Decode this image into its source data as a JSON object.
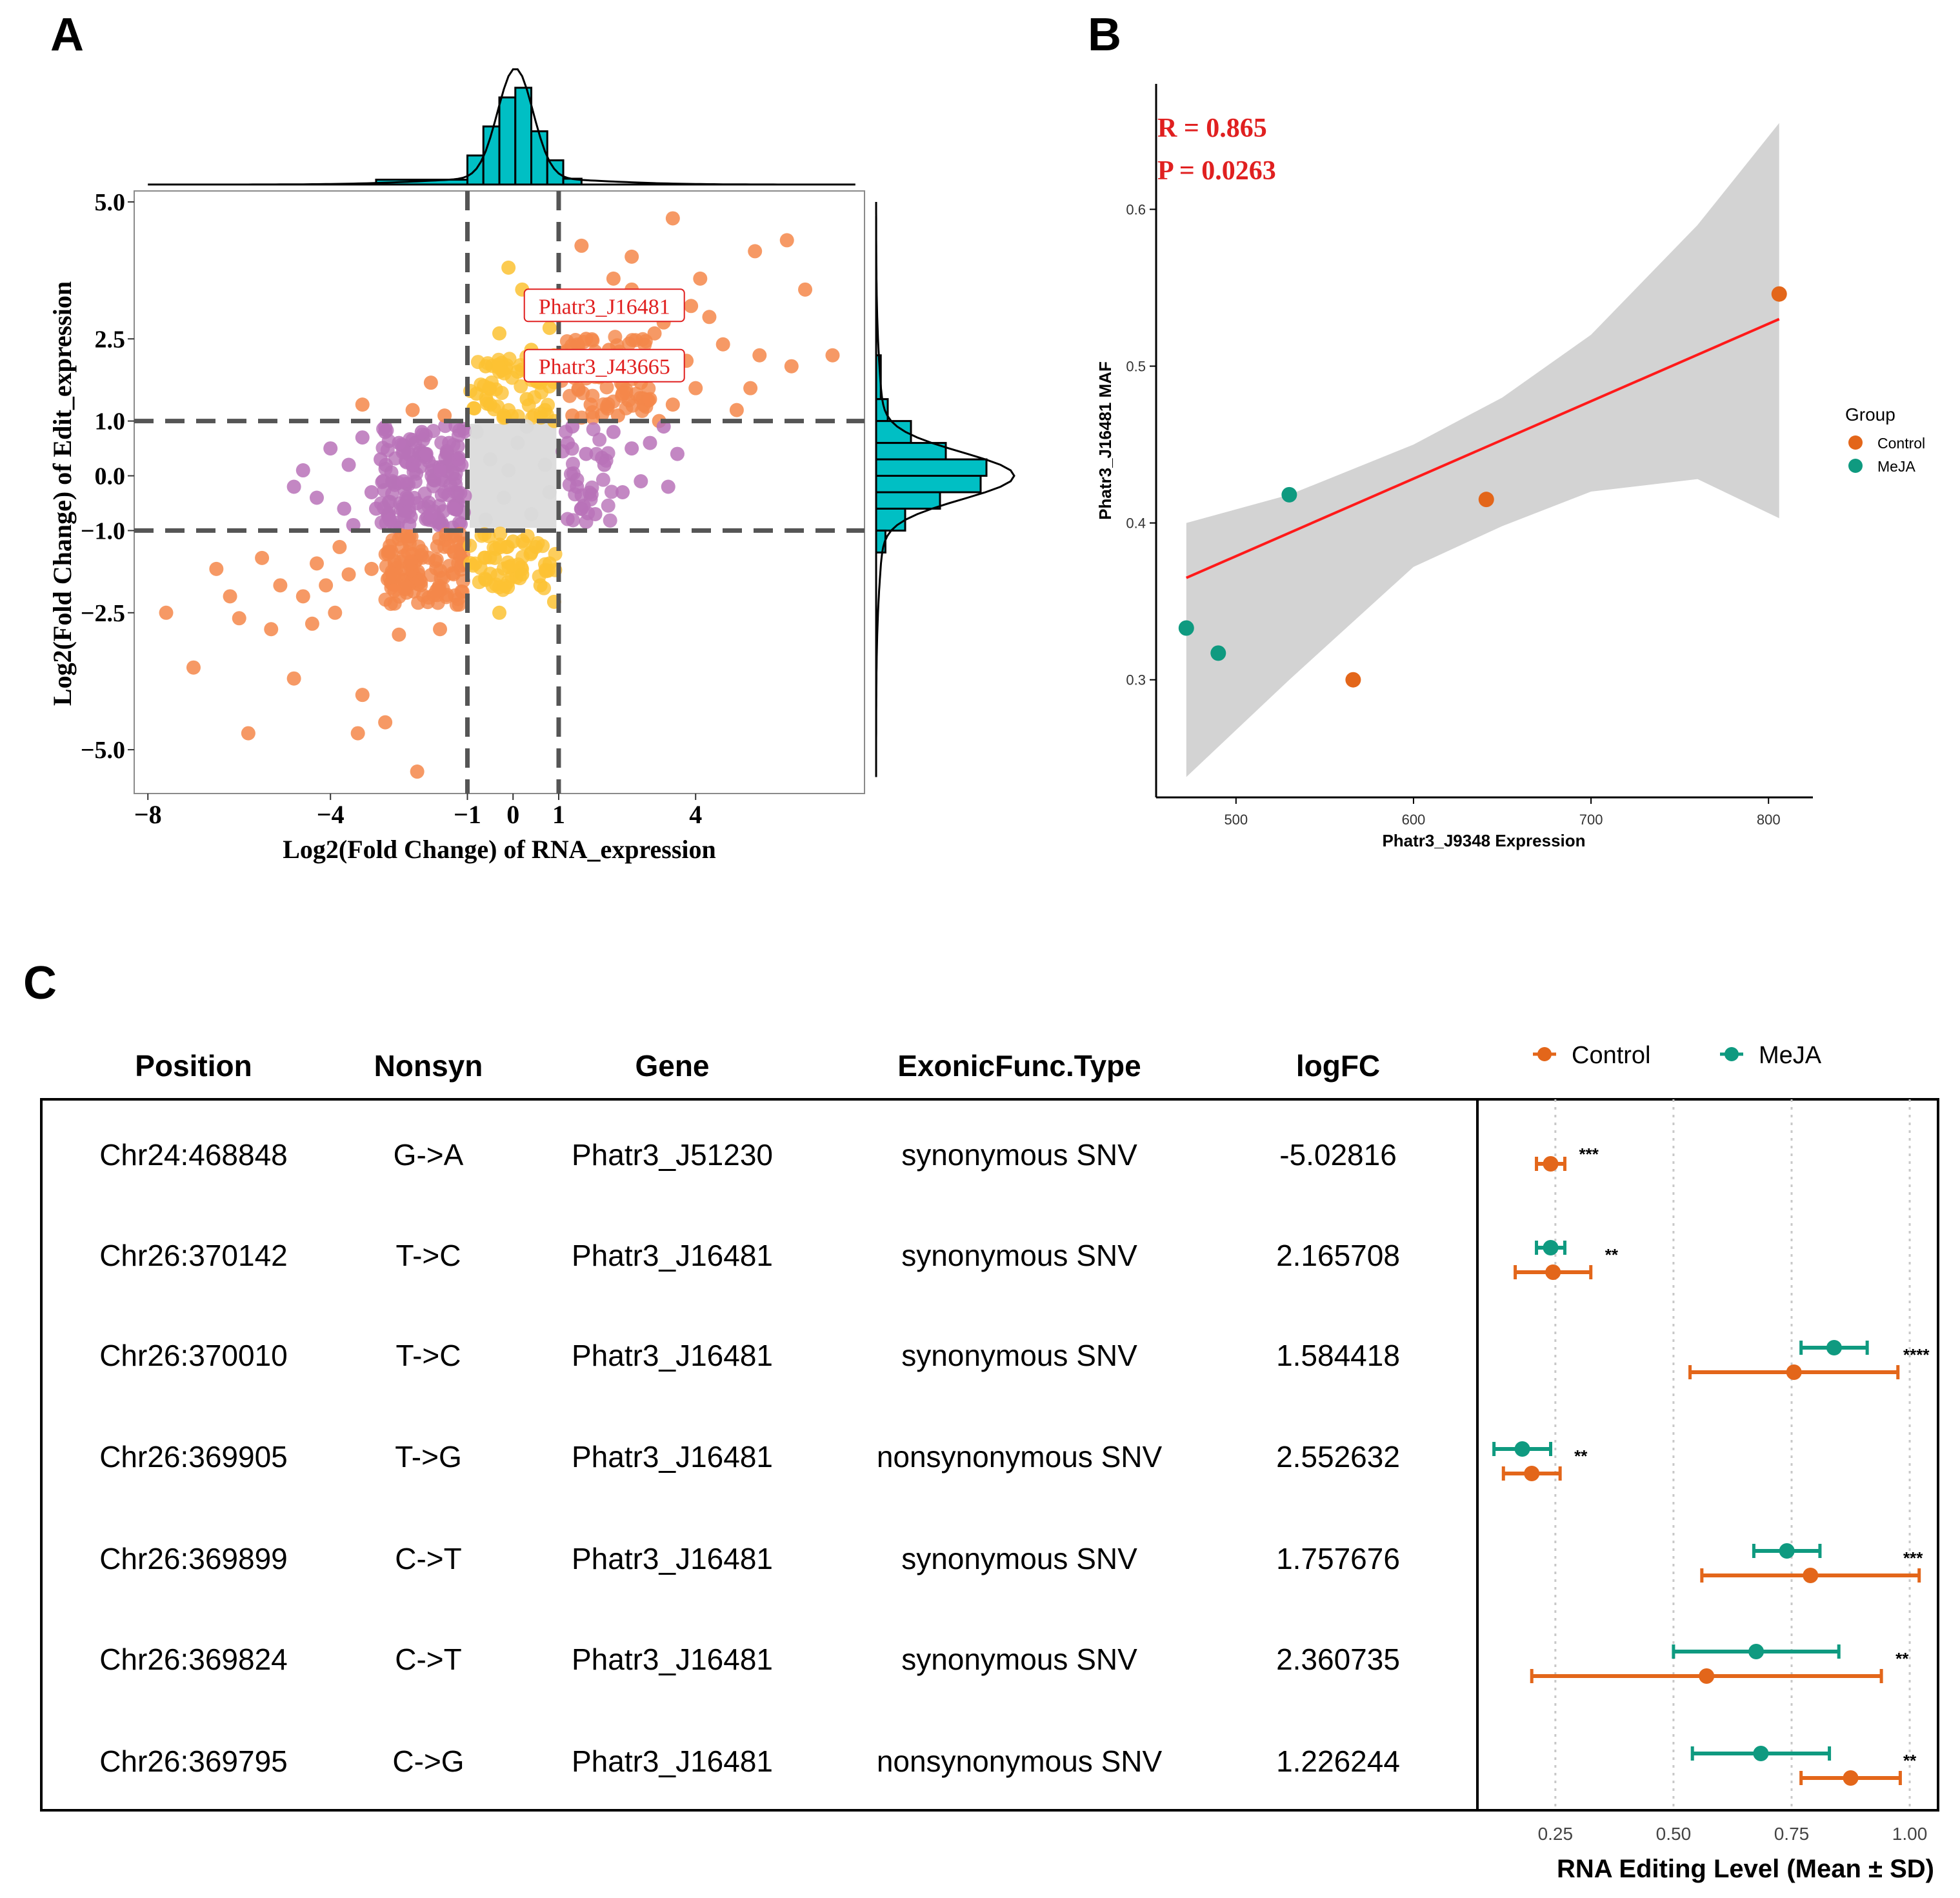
{
  "panel_labels": {
    "a": "A",
    "b": "B",
    "c": "C"
  },
  "colors": {
    "orange_pt": "#f4874a",
    "yellow_pt": "#fcc233",
    "purple_pt": "#b872b8",
    "grey_pt": "#d9d9d9",
    "hist": "#00bfc4",
    "control": "#e3661a",
    "meja": "#0f9a80",
    "reg_line": "#ff1a1a",
    "ribbon": "#d3d3d3",
    "stat_text": "#e02020"
  },
  "chart_data": [
    {
      "id": "A",
      "type": "scatter",
      "title": "",
      "xlabel": "Log2(Fold Change) of RNA_expression",
      "ylabel": "Log2(Fold Change) of Edit_expression",
      "xlim": [
        -8.3,
        7.7
      ],
      "ylim": [
        -5.8,
        5.2
      ],
      "xticks": [
        -8,
        -4,
        -1,
        0,
        1,
        4
      ],
      "xtick_labels": [
        "−8",
        "−4",
        "−1",
        "0",
        "1",
        "4"
      ],
      "yticks": [
        5.0,
        2.5,
        1.0,
        0.0,
        -1.0,
        -2.5,
        -5.0
      ],
      "ytick_labels": [
        "5.0",
        "2.5",
        "1.0",
        "0.0",
        "−1.0",
        "−2.5",
        "−5.0"
      ],
      "threshold_lines": {
        "x": [
          -1,
          1
        ],
        "y": [
          -1,
          1
        ]
      },
      "annotations": [
        {
          "label": "Phatr3_J16481",
          "x": 2.0,
          "y": 3.1
        },
        {
          "label": "Phatr3_J43665",
          "x": 2.0,
          "y": 2.0
        }
      ],
      "groups": [
        {
          "name": "both_sig",
          "color": "orange",
          "points": [
            [
              1.5,
              4.2
            ],
            [
              2.6,
              4.0
            ],
            [
              3.5,
              4.7
            ],
            [
              4.1,
              3.6
            ],
            [
              5.3,
              4.1
            ],
            [
              6.0,
              4.3
            ],
            [
              6.4,
              3.4
            ],
            [
              3.9,
              3.1
            ],
            [
              4.3,
              2.9
            ],
            [
              4.6,
              2.4
            ],
            [
              5.4,
              2.2
            ],
            [
              6.1,
              2.0
            ],
            [
              7.0,
              2.2
            ],
            [
              5.2,
              1.6
            ],
            [
              4.9,
              1.2
            ],
            [
              2.2,
              3.6
            ],
            [
              2.6,
              3.4
            ],
            [
              3.0,
              3.1
            ],
            [
              3.3,
              2.8
            ],
            [
              2.1,
              2.3
            ],
            [
              2.7,
              2.1
            ],
            [
              3.1,
              2.6
            ],
            [
              1.6,
              2.5
            ],
            [
              1.9,
              1.8
            ],
            [
              2.4,
              1.5
            ],
            [
              3.0,
              1.4
            ],
            [
              3.5,
              1.3
            ],
            [
              4.0,
              1.6
            ],
            [
              1.3,
              1.1
            ],
            [
              2.8,
              1.7
            ],
            [
              3.8,
              2.1
            ],
            [
              1.7,
              1.3
            ],
            [
              2.3,
              1.1
            ],
            [
              3.2,
              1.0
            ],
            [
              -3.3,
              1.3
            ],
            [
              -2.2,
              1.2
            ],
            [
              -1.5,
              1.1
            ],
            [
              -1.8,
              1.7
            ],
            [
              -7.6,
              -2.5
            ],
            [
              -7.0,
              -3.5
            ],
            [
              -6.2,
              -2.2
            ],
            [
              -6.0,
              -2.6
            ],
            [
              -5.5,
              -1.5
            ],
            [
              -5.1,
              -2.0
            ],
            [
              -4.8,
              -3.7
            ],
            [
              -4.6,
              -2.2
            ],
            [
              -4.1,
              -2.0
            ],
            [
              -3.9,
              -2.5
            ],
            [
              -3.6,
              -1.8
            ],
            [
              -3.3,
              -4.0
            ],
            [
              -2.8,
              -4.5
            ],
            [
              -5.8,
              -4.7
            ],
            [
              -3.4,
              -4.7
            ],
            [
              -2.1,
              -5.4
            ],
            [
              -2.5,
              -2.9
            ],
            [
              -1.6,
              -2.8
            ],
            [
              -6.5,
              -1.7
            ],
            [
              -4.3,
              -1.6
            ],
            [
              -3.1,
              -1.7
            ],
            [
              -2.3,
              -1.4
            ],
            [
              -3.8,
              -1.3
            ],
            [
              -4.4,
              -2.7
            ],
            [
              -5.3,
              -2.8
            ],
            [
              -1.4,
              -1.3
            ],
            [
              -2.6,
              -2.1
            ]
          ]
        },
        {
          "name": "rna_only",
          "color": "purple",
          "points": [
            [
              -4.6,
              0.1
            ],
            [
              -4.3,
              -0.4
            ],
            [
              -4.0,
              0.5
            ],
            [
              -3.7,
              -0.6
            ],
            [
              -3.6,
              0.2
            ],
            [
              -3.3,
              0.7
            ],
            [
              -3.1,
              -0.3
            ],
            [
              -2.9,
              0.3
            ],
            [
              -2.7,
              -0.8
            ],
            [
              -2.5,
              0.6
            ],
            [
              -2.4,
              -0.1
            ],
            [
              -2.2,
              0.2
            ],
            [
              -2.1,
              -0.5
            ],
            [
              -1.9,
              0.4
            ],
            [
              -1.8,
              -0.7
            ],
            [
              -1.6,
              0.1
            ],
            [
              -1.5,
              -0.3
            ],
            [
              -1.4,
              0.6
            ],
            [
              -1.3,
              -0.6
            ],
            [
              -1.2,
              0.3
            ],
            [
              -3.5,
              -0.9
            ],
            [
              -2.8,
              0.8
            ],
            [
              -2.0,
              0.8
            ],
            [
              -4.8,
              -0.2
            ],
            [
              -3.0,
              -0.6
            ],
            [
              1.2,
              0.6
            ],
            [
              1.4,
              -0.2
            ],
            [
              1.6,
              0.4
            ],
            [
              1.8,
              -0.7
            ],
            [
              2.0,
              0.2
            ],
            [
              2.2,
              0.8
            ],
            [
              2.4,
              -0.3
            ],
            [
              2.6,
              0.5
            ],
            [
              2.8,
              -0.1
            ],
            [
              3.0,
              0.6
            ],
            [
              3.3,
              0.9
            ],
            [
              3.6,
              0.4
            ],
            [
              3.4,
              -0.2
            ],
            [
              1.3,
              0.9
            ],
            [
              1.5,
              -0.6
            ]
          ]
        },
        {
          "name": "edit_only",
          "color": "yellow",
          "points": [
            [
              -0.1,
              3.8
            ],
            [
              0.2,
              3.4
            ],
            [
              0.5,
              3.0
            ],
            [
              0.8,
              2.7
            ],
            [
              -0.3,
              2.6
            ],
            [
              0.4,
              2.3
            ],
            [
              0.9,
              2.2
            ],
            [
              -0.6,
              2.0
            ],
            [
              0.1,
              1.9
            ],
            [
              0.6,
              1.7
            ],
            [
              -0.8,
              1.5
            ],
            [
              0.3,
              1.4
            ],
            [
              0.7,
              1.2
            ],
            [
              -0.2,
              1.1
            ],
            [
              0.9,
              1.0
            ],
            [
              -0.5,
              1.3
            ],
            [
              0.0,
              -1.2
            ],
            [
              0.4,
              -1.4
            ],
            [
              0.8,
              -1.6
            ],
            [
              -0.4,
              -1.5
            ],
            [
              0.2,
              -1.8
            ],
            [
              0.6,
              -2.0
            ],
            [
              -0.6,
              -1.9
            ],
            [
              0.9,
              -2.3
            ],
            [
              -0.3,
              -2.5
            ],
            [
              0.5,
              -1.3
            ]
          ]
        },
        {
          "name": "not_sig",
          "color": "grey",
          "points": [
            [
              -0.8,
              0.8
            ],
            [
              -0.5,
              0.3
            ],
            [
              -0.2,
              -0.4
            ],
            [
              0.1,
              0.6
            ],
            [
              0.4,
              -0.7
            ],
            [
              0.7,
              0.2
            ],
            [
              -0.6,
              -0.8
            ],
            [
              0.3,
              0.9
            ],
            [
              0.8,
              -0.3
            ],
            [
              -0.1,
              0.1
            ]
          ]
        }
      ]
    },
    {
      "id": "B",
      "type": "scatter",
      "xlabel": "Phatr3_J9348 Expression",
      "ylabel": "Phatr3_J16481 MAF",
      "xlim": [
        455,
        825
      ],
      "ylim": [
        0.225,
        0.68
      ],
      "xticks": [
        500,
        600,
        700,
        800
      ],
      "yticks": [
        0.3,
        0.4,
        0.5,
        0.6
      ],
      "stats": {
        "r_label": "R = 0.865",
        "p_label": "P = 0.0263"
      },
      "legend": {
        "title": "Group",
        "entries": [
          "Control",
          "MeJA"
        ],
        "position": "right"
      },
      "regression": {
        "x0": 472,
        "y0": 0.365,
        "x1": 806,
        "y1": 0.53
      },
      "ribbon_upper": [
        [
          472,
          0.4
        ],
        [
          530,
          0.418
        ],
        [
          600,
          0.45
        ],
        [
          650,
          0.48
        ],
        [
          700,
          0.52
        ],
        [
          760,
          0.59
        ],
        [
          806,
          0.655
        ]
      ],
      "ribbon_lower": [
        [
          472,
          0.238
        ],
        [
          530,
          0.3
        ],
        [
          600,
          0.372
        ],
        [
          650,
          0.398
        ],
        [
          700,
          0.42
        ],
        [
          760,
          0.428
        ],
        [
          806,
          0.403
        ]
      ],
      "points": [
        {
          "group": "Control",
          "x": 806,
          "y": 0.546
        },
        {
          "group": "Control",
          "x": 641,
          "y": 0.415
        },
        {
          "group": "Control",
          "x": 566,
          "y": 0.3
        },
        {
          "group": "MeJA",
          "x": 530,
          "y": 0.418
        },
        {
          "group": "MeJA",
          "x": 472,
          "y": 0.333
        },
        {
          "group": "MeJA",
          "x": 490,
          "y": 0.317
        }
      ]
    },
    {
      "id": "C",
      "type": "table",
      "columns": [
        "Position",
        "Nonsyn",
        "Gene",
        "ExonicFunc.Type",
        "logFC"
      ],
      "rows": [
        [
          "Chr24:468848",
          "G->A",
          "Phatr3_J51230",
          "synonymous SNV",
          "-5.02816"
        ],
        [
          "Chr26:370142",
          "T->C",
          "Phatr3_J16481",
          "synonymous SNV",
          "2.165708"
        ],
        [
          "Chr26:370010",
          "T->C",
          "Phatr3_J16481",
          "synonymous SNV",
          "1.584418"
        ],
        [
          "Chr26:369905",
          "T->G",
          "Phatr3_J16481",
          "nonsynonymous SNV",
          "2.552632"
        ],
        [
          "Chr26:369899",
          "C->T",
          "Phatr3_J16481",
          "synonymous SNV",
          "1.757676"
        ],
        [
          "Chr26:369824",
          "C->T",
          "Phatr3_J16481",
          "synonymous SNV",
          "2.360735"
        ],
        [
          "Chr26:369795",
          "C->G",
          "Phatr3_J16481",
          "nonsynonymous SNV",
          "1.226244"
        ]
      ],
      "forest": {
        "type": "errorbar",
        "xlabel": "RNA Editing Level (Mean ± SD)",
        "xlim": [
          0.085,
          1.06
        ],
        "xticks": [
          0.25,
          0.5,
          0.75,
          1.0
        ],
        "xtick_labels": [
          "0.25",
          "0.50",
          "0.75",
          "1.00"
        ],
        "legend": [
          "Control",
          "MeJA"
        ],
        "rows": [
          {
            "meja": null,
            "control": {
              "mean": 0.24,
              "sd": 0.03
            },
            "sig": "***"
          },
          {
            "meja": {
              "mean": 0.24,
              "sd": 0.03
            },
            "control": {
              "mean": 0.245,
              "sd": 0.08
            },
            "sig": "**"
          },
          {
            "meja": {
              "mean": 0.84,
              "sd": 0.07
            },
            "control": {
              "mean": 0.755,
              "sd": 0.22
            },
            "sig": "****"
          },
          {
            "meja": {
              "mean": 0.18,
              "sd": 0.06
            },
            "control": {
              "mean": 0.2,
              "sd": 0.06
            },
            "sig": "**"
          },
          {
            "meja": {
              "mean": 0.74,
              "sd": 0.07
            },
            "control": {
              "mean": 0.79,
              "sd": 0.23
            },
            "sig": "***"
          },
          {
            "meja": {
              "mean": 0.675,
              "sd": 0.175
            },
            "control": {
              "mean": 0.57,
              "sd": 0.37
            },
            "sig": "**"
          },
          {
            "meja": {
              "mean": 0.685,
              "sd": 0.145
            },
            "control": {
              "mean": 0.875,
              "sd": 0.105
            },
            "sig": "**"
          }
        ]
      }
    }
  ]
}
